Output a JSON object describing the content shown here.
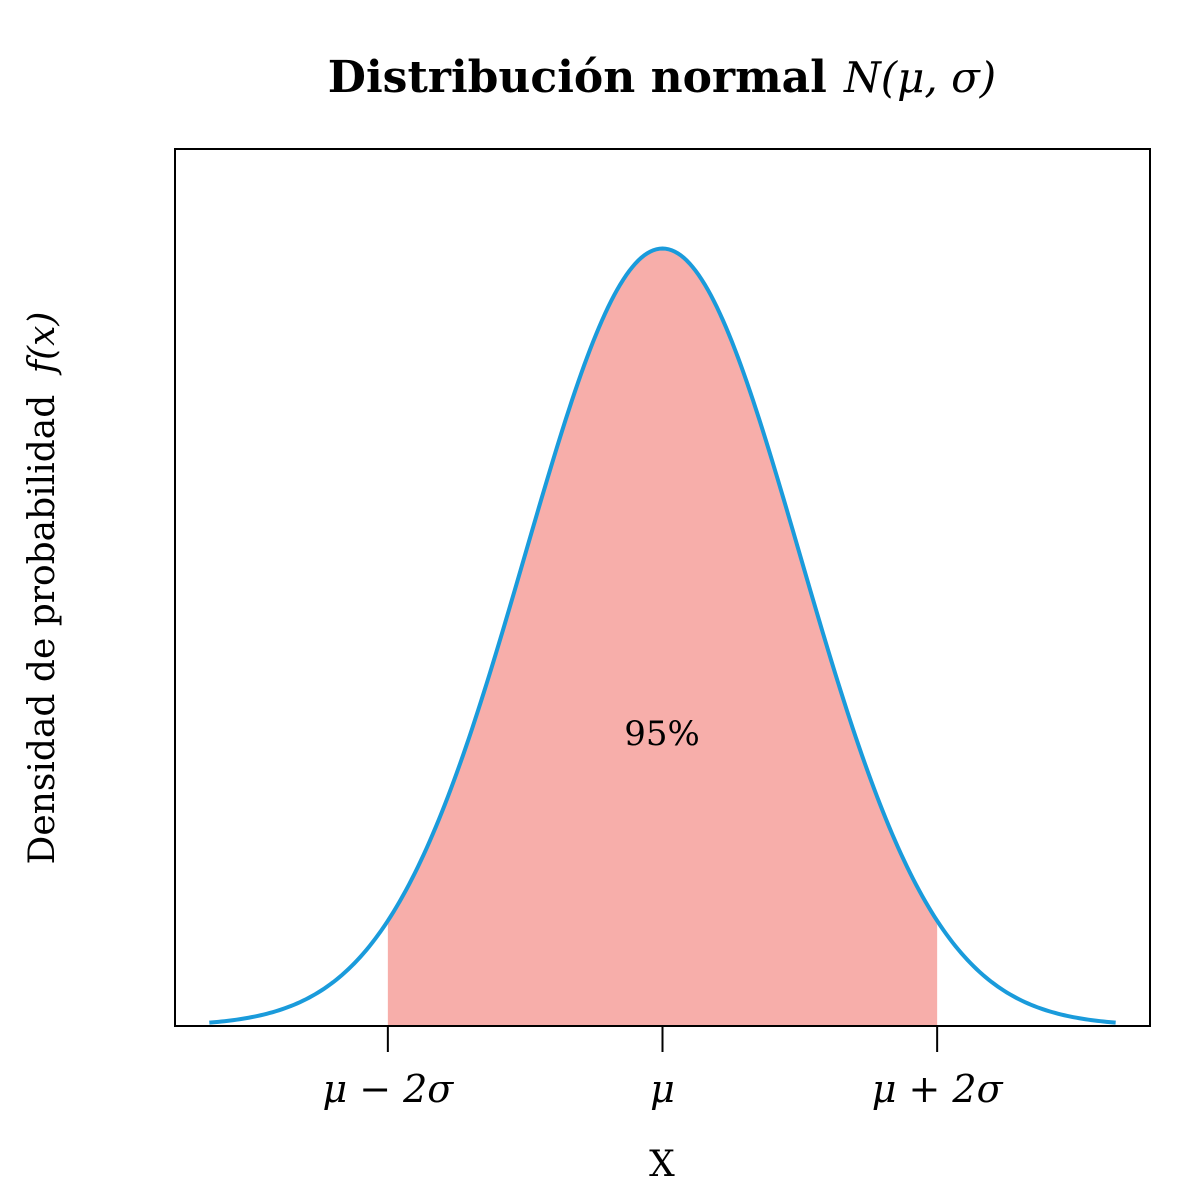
{
  "chart_data": {
    "type": "area",
    "title": "Distribución normal",
    "title_math": "N(μ, σ)",
    "xlabel": "X",
    "ylabel": "Densidad de probabilidad",
    "ylabel_math": "f(x)",
    "x_range": [
      -3.3,
      3.3
    ],
    "xlim": [
      -3.55,
      3.55
    ],
    "ylim": [
      0,
      0.45
    ],
    "shaded_interval": [
      -2,
      2
    ],
    "annotation": "95%",
    "x_ticks": [
      {
        "value": -2,
        "label": "μ − 2σ"
      },
      {
        "value": 0,
        "label": "μ"
      },
      {
        "value": 2,
        "label": "μ + 2σ"
      }
    ],
    "curve_color": "#1a9bdb",
    "fill_color": "#f7aeaa",
    "grid": false,
    "legend": "none"
  }
}
